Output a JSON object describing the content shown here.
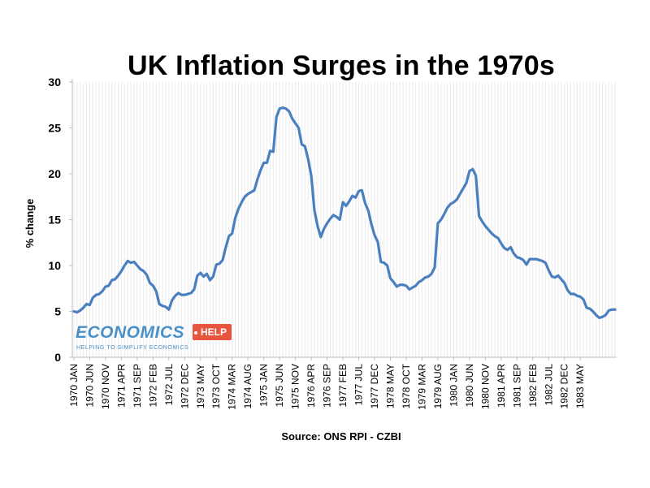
{
  "chart_data": {
    "type": "line",
    "title": "UK Inflation Surges in the 1970s",
    "ylabel": "% change",
    "xlabel": "",
    "source": "Source: ONS RPI - CZBI",
    "ylim": [
      0,
      30
    ],
    "yticks": [
      0,
      5,
      10,
      15,
      20,
      25,
      30
    ],
    "grid": "vertical light",
    "line_color": "#4a7fc0",
    "x_ticks": [
      "1970 JAN",
      "1970 JUN",
      "1970 NOV",
      "1971 APR",
      "1971 SEP",
      "1972 FEB",
      "1972 JUL",
      "1972 DEC",
      "1973 MAY",
      "1973 OCT",
      "1974 MAR",
      "1974 AUG",
      "1975 JAN",
      "1975 JUN",
      "1975 NOV",
      "1976 APR",
      "1976 SEP",
      "1977 FEB",
      "1977 JUL",
      "1977 DEC",
      "1978 MAY",
      "1978 OCT",
      "1979 MAR",
      "1979 AUG",
      "1980 JAN",
      "1980 JUN",
      "1980 NOV",
      "1981 APR",
      "1981 SEP",
      "1982 FEB",
      "1982 JUL",
      "1982 DEC",
      "1983 MAY"
    ],
    "series": [
      {
        "values": [
          5.0,
          4.9,
          5.1,
          5.4,
          5.8,
          5.7,
          6.5,
          6.8,
          6.9,
          7.2,
          7.7,
          7.8,
          8.4,
          8.5,
          8.9,
          9.4,
          10.0,
          10.5,
          10.3,
          10.4,
          10.0,
          9.6,
          9.4,
          9.0,
          8.1,
          7.8,
          7.2,
          5.8,
          5.6,
          5.5,
          5.2,
          6.2,
          6.7,
          7.0,
          6.8,
          6.8,
          6.9,
          7.0,
          7.4,
          8.9,
          9.2,
          8.8,
          9.1,
          8.4,
          8.8,
          10.1,
          10.2,
          10.6,
          12.0,
          13.2,
          13.5,
          15.2,
          16.2,
          16.9,
          17.5,
          17.8,
          18.0,
          18.2,
          19.4,
          20.4,
          21.2,
          21.2,
          22.5,
          22.4,
          26.2,
          27.1,
          27.2,
          27.1,
          26.8,
          26.0,
          25.5,
          25.0,
          23.2,
          23.0,
          21.6,
          19.8,
          16.0,
          14.3,
          13.1,
          14.0,
          14.6,
          15.1,
          15.5,
          15.3,
          15.0,
          16.9,
          16.5,
          17.0,
          17.6,
          17.4,
          18.1,
          18.2,
          16.8,
          16.0,
          14.5,
          13.3,
          12.6,
          10.4,
          10.3,
          10.0,
          8.6,
          8.2,
          7.7,
          7.9,
          7.9,
          7.8,
          7.4,
          7.6,
          7.8,
          8.2,
          8.4,
          8.7,
          8.8,
          9.1,
          9.8,
          14.6,
          15.0,
          15.6,
          16.3,
          16.7,
          16.9,
          17.2,
          17.8,
          18.4,
          19.0,
          20.3,
          20.5,
          19.8,
          15.4,
          14.8,
          14.3,
          13.9,
          13.5,
          13.2,
          13.0,
          12.4,
          11.9,
          11.7,
          12.0,
          11.3,
          10.9,
          10.8,
          10.6,
          10.1,
          10.7,
          10.7,
          10.7,
          10.6,
          10.5,
          10.3,
          9.5,
          8.8,
          8.7,
          8.9,
          8.5,
          8.1,
          7.3,
          6.9,
          6.9,
          6.7,
          6.6,
          6.3,
          5.4,
          5.3,
          5.0,
          4.6,
          4.3,
          4.4,
          4.6,
          5.1,
          5.2,
          5.2
        ]
      }
    ]
  },
  "logo": {
    "main": "ECONOMICS",
    "tag": "HELP",
    "sub": "HELPING TO SIMPLIFY ECONOMICS"
  }
}
